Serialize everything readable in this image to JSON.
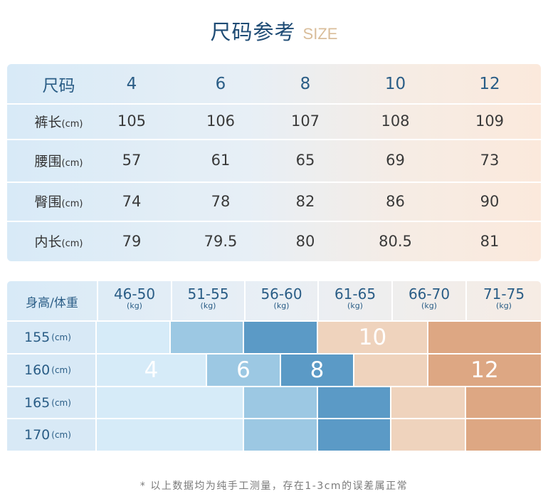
{
  "title": {
    "zh": "尺码参考",
    "en": "SIZE"
  },
  "size_table": {
    "header_label": "尺码",
    "sizes": [
      "4",
      "6",
      "8",
      "10",
      "12"
    ],
    "unit": "(cm)",
    "rows": [
      {
        "label": "裤长",
        "values": [
          "105",
          "106",
          "107",
          "108",
          "109"
        ]
      },
      {
        "label": "腰围",
        "values": [
          "57",
          "61",
          "65",
          "69",
          "73"
        ]
      },
      {
        "label": "臀围",
        "values": [
          "74",
          "78",
          "82",
          "86",
          "90"
        ]
      },
      {
        "label": "内长",
        "values": [
          "79",
          "79.5",
          "80",
          "80.5",
          "81"
        ]
      }
    ]
  },
  "fit_grid": {
    "corner_label": "身高/体重",
    "weight_unit": "(kg)",
    "height_unit": "(cm)",
    "weights": [
      "46-50",
      "51-55",
      "56-60",
      "61-65",
      "66-70",
      "71-75"
    ],
    "heights": [
      "155",
      "160",
      "165",
      "170"
    ],
    "size_labels": [
      "4",
      "6",
      "8",
      "10",
      "12"
    ],
    "colors": {
      "size_4": "#d6ebf8",
      "size_6": "#9cc8e3",
      "size_8": "#5b9ac6",
      "size_10": "#efd3bd",
      "size_12": "#dda783"
    }
  },
  "note": "* 以上数据均为纯手工测量，存在1-3cm的误差属正常"
}
